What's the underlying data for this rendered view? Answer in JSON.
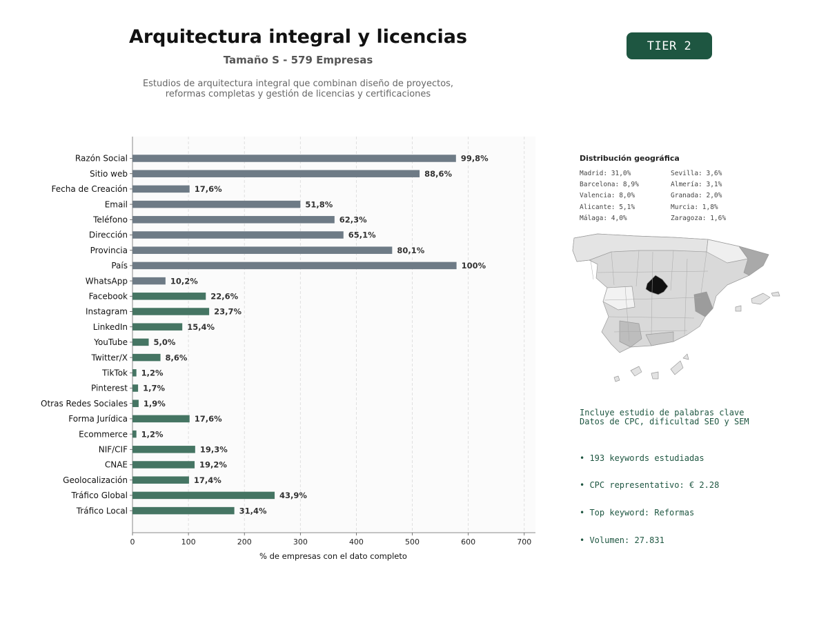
{
  "header": {
    "title": "Arquitectura integral y licencias",
    "subtitle": "Tamaño S - 579 Empresas",
    "description_line1": "Estudios de arquitectura integral que combinan diseño de proyectos,",
    "description_line2": "reformas completas y gestión de licencias y certificaciones",
    "tier": "TIER 2"
  },
  "chart_data": {
    "type": "bar",
    "orientation": "horizontal",
    "title": "",
    "xlabel": "% de empresas con el dato completo",
    "ylabel": "",
    "xlim": [
      0,
      720
    ],
    "xticks": [
      0,
      100,
      200,
      300,
      400,
      500,
      600,
      700
    ],
    "grid": true,
    "categories": [
      "Razón Social",
      "Sitio web",
      "Fecha de Creación",
      "Email",
      "Teléfono",
      "Dirección",
      "Provincia",
      "País",
      "WhatsApp",
      "Facebook",
      "Instagram",
      "LinkedIn",
      "YouTube",
      "Twitter/X",
      "TikTok",
      "Pinterest",
      "Otras Redes Sociales",
      "Forma Jurídica",
      "Ecommerce",
      "NIF/CIF",
      "CNAE",
      "Geolocalización",
      "Tráfico Global",
      "Tráfico Local"
    ],
    "values": [
      578,
      513,
      102,
      300,
      361,
      377,
      464,
      579,
      59,
      131,
      137,
      89,
      29,
      50,
      7,
      10,
      11,
      102,
      7,
      112,
      111,
      101,
      254,
      182
    ],
    "labels": [
      "99,8%",
      "88,6%",
      "17,6%",
      "51,8%",
      "62,3%",
      "65,1%",
      "80,1%",
      "100%",
      "10,2%",
      "22,6%",
      "23,7%",
      "15,4%",
      "5,0%",
      "8,6%",
      "1,2%",
      "1,7%",
      "1,9%",
      "17,6%",
      "1,2%",
      "19,3%",
      "19,2%",
      "17,4%",
      "43,9%",
      "31,4%"
    ],
    "colors": {
      "basic": "#6e7b86",
      "extended": "#457563"
    },
    "basic_count": 9
  },
  "geo": {
    "title": "Distribución geográfica",
    "col1": [
      "Madrid: 31,0%",
      "Barcelona: 8,9%",
      "Valencia: 8,0%",
      "Alicante: 5,1%",
      "Málaga: 4,0%"
    ],
    "col2": [
      "Sevilla: 3,6%",
      "Almería: 3,1%",
      "Granada: 2,0%",
      "Murcia: 1,8%",
      "Zaragoza: 1,6%"
    ]
  },
  "keywords": {
    "line1": "Incluye estudio de palabras clave",
    "line2": "Datos de CPC, dificultad SEO y SEM",
    "bullets": [
      "• 193 keywords estudiadas",
      "• CPC representativo: € 2.28",
      "• Top keyword: Reformas",
      "• Volumen: 27.831"
    ]
  }
}
